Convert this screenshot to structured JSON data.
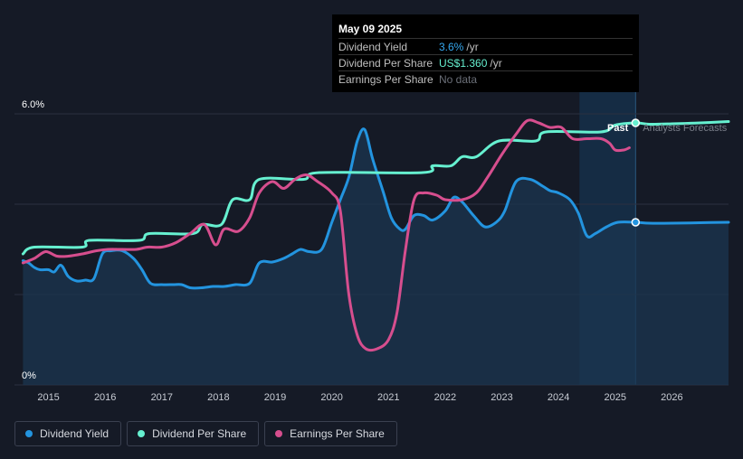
{
  "tooltip": {
    "date": "May 09 2025",
    "rows": [
      {
        "label": "Dividend Yield",
        "value": "3.6%",
        "unit": "/yr"
      },
      {
        "label": "Dividend Per Share",
        "value": "US$1.360",
        "unit": "/yr"
      },
      {
        "label": "Earnings Per Share",
        "value": "No data"
      }
    ]
  },
  "annotations": {
    "past": "Past",
    "forecast": "Analysts Forecasts"
  },
  "legend": [
    {
      "label": "Dividend Yield",
      "color": "#2394df"
    },
    {
      "label": "Dividend Per Share",
      "color": "#66f0d0"
    },
    {
      "label": "Earnings Per Share",
      "color": "#d64e8e"
    }
  ],
  "colors": {
    "background": "#151a26",
    "grid": "#2a3040",
    "area": "#1b3550",
    "forecast_band": "#152c44"
  },
  "chart_data": {
    "type": "line",
    "xlim": [
      2014.4,
      2027.0
    ],
    "ylim": [
      0,
      6.0
    ],
    "y_tick_labels": [
      {
        "value": 6.0,
        "label": "6.0%"
      },
      {
        "value": 0,
        "label": "0%"
      }
    ],
    "gridlines": [
      6.0,
      4.0,
      2.0,
      0
    ],
    "x_ticks": [
      2015,
      2016,
      2017,
      2018,
      2019,
      2020,
      2021,
      2022,
      2023,
      2024,
      2025,
      2026
    ],
    "past_boundary": 2025.36,
    "forecast_band_start": 2024.37,
    "series": [
      {
        "name": "Dividend Yield",
        "color": "#2394df",
        "area": true,
        "points": [
          [
            2014.55,
            2.75
          ],
          [
            2014.65,
            2.7
          ],
          [
            2014.75,
            2.6
          ],
          [
            2014.85,
            2.55
          ],
          [
            2015.0,
            2.55
          ],
          [
            2015.1,
            2.5
          ],
          [
            2015.22,
            2.65
          ],
          [
            2015.35,
            2.4
          ],
          [
            2015.5,
            2.3
          ],
          [
            2015.65,
            2.32
          ],
          [
            2015.8,
            2.35
          ],
          [
            2015.95,
            2.9
          ],
          [
            2016.1,
            2.97
          ],
          [
            2016.3,
            2.97
          ],
          [
            2016.5,
            2.8
          ],
          [
            2016.65,
            2.55
          ],
          [
            2016.8,
            2.25
          ],
          [
            2017.0,
            2.22
          ],
          [
            2017.2,
            2.22
          ],
          [
            2017.35,
            2.22
          ],
          [
            2017.5,
            2.15
          ],
          [
            2017.7,
            2.15
          ],
          [
            2017.9,
            2.18
          ],
          [
            2018.1,
            2.18
          ],
          [
            2018.3,
            2.22
          ],
          [
            2018.55,
            2.25
          ],
          [
            2018.72,
            2.7
          ],
          [
            2018.95,
            2.72
          ],
          [
            2019.15,
            2.8
          ],
          [
            2019.3,
            2.9
          ],
          [
            2019.45,
            3.0
          ],
          [
            2019.6,
            2.95
          ],
          [
            2019.82,
            3.0
          ],
          [
            2020.0,
            3.6
          ],
          [
            2020.15,
            4.1
          ],
          [
            2020.3,
            4.6
          ],
          [
            2020.45,
            5.4
          ],
          [
            2020.58,
            5.65
          ],
          [
            2020.72,
            5.0
          ],
          [
            2020.9,
            4.3
          ],
          [
            2021.05,
            3.7
          ],
          [
            2021.2,
            3.45
          ],
          [
            2021.3,
            3.45
          ],
          [
            2021.45,
            3.75
          ],
          [
            2021.62,
            3.75
          ],
          [
            2021.78,
            3.65
          ],
          [
            2022.0,
            3.85
          ],
          [
            2022.15,
            4.15
          ],
          [
            2022.3,
            4.05
          ],
          [
            2022.5,
            3.75
          ],
          [
            2022.7,
            3.5
          ],
          [
            2022.9,
            3.6
          ],
          [
            2023.05,
            3.85
          ],
          [
            2023.25,
            4.5
          ],
          [
            2023.5,
            4.55
          ],
          [
            2023.72,
            4.4
          ],
          [
            2023.85,
            4.3
          ],
          [
            2024.0,
            4.25
          ],
          [
            2024.2,
            4.1
          ],
          [
            2024.35,
            3.8
          ],
          [
            2024.5,
            3.3
          ],
          [
            2024.65,
            3.35
          ],
          [
            2024.85,
            3.5
          ],
          [
            2025.05,
            3.6
          ],
          [
            2025.36,
            3.6
          ],
          [
            2025.6,
            3.58
          ],
          [
            2026.0,
            3.58
          ],
          [
            2026.5,
            3.59
          ],
          [
            2027.0,
            3.6
          ]
        ]
      },
      {
        "name": "Dividend Per Share",
        "color": "#66f0d0",
        "area": false,
        "points": [
          [
            2014.55,
            2.9
          ],
          [
            2014.75,
            3.05
          ],
          [
            2015.6,
            3.05
          ],
          [
            2015.72,
            3.2
          ],
          [
            2016.6,
            3.2
          ],
          [
            2016.78,
            3.35
          ],
          [
            2017.55,
            3.35
          ],
          [
            2017.72,
            3.55
          ],
          [
            2018.05,
            3.55
          ],
          [
            2018.25,
            4.1
          ],
          [
            2018.55,
            4.1
          ],
          [
            2018.72,
            4.55
          ],
          [
            2019.5,
            4.55
          ],
          [
            2019.78,
            4.7
          ],
          [
            2021.6,
            4.7
          ],
          [
            2021.78,
            4.85
          ],
          [
            2022.1,
            4.85
          ],
          [
            2022.3,
            5.05
          ],
          [
            2022.55,
            5.05
          ],
          [
            2022.95,
            5.4
          ],
          [
            2023.6,
            5.4
          ],
          [
            2023.78,
            5.6
          ],
          [
            2024.75,
            5.6
          ],
          [
            2025.0,
            5.75
          ],
          [
            2025.36,
            5.8
          ],
          [
            2025.6,
            5.77
          ],
          [
            2026.0,
            5.78
          ],
          [
            2026.5,
            5.8
          ],
          [
            2027.0,
            5.83
          ]
        ]
      },
      {
        "name": "Earnings Per Share",
        "color": "#d64e8e",
        "area": false,
        "points": [
          [
            2014.55,
            2.7
          ],
          [
            2014.75,
            2.8
          ],
          [
            2014.95,
            2.95
          ],
          [
            2015.15,
            2.85
          ],
          [
            2015.35,
            2.85
          ],
          [
            2015.6,
            2.9
          ],
          [
            2015.85,
            2.97
          ],
          [
            2016.05,
            3.0
          ],
          [
            2016.3,
            3.0
          ],
          [
            2016.55,
            3.0
          ],
          [
            2016.75,
            3.05
          ],
          [
            2017.0,
            3.05
          ],
          [
            2017.25,
            3.15
          ],
          [
            2017.5,
            3.35
          ],
          [
            2017.75,
            3.55
          ],
          [
            2017.95,
            3.1
          ],
          [
            2018.1,
            3.45
          ],
          [
            2018.35,
            3.4
          ],
          [
            2018.55,
            3.7
          ],
          [
            2018.72,
            4.25
          ],
          [
            2018.95,
            4.5
          ],
          [
            2019.15,
            4.35
          ],
          [
            2019.35,
            4.55
          ],
          [
            2019.55,
            4.65
          ],
          [
            2019.75,
            4.5
          ],
          [
            2020.0,
            4.25
          ],
          [
            2020.15,
            3.85
          ],
          [
            2020.3,
            2.0
          ],
          [
            2020.45,
            1.1
          ],
          [
            2020.6,
            0.8
          ],
          [
            2020.8,
            0.8
          ],
          [
            2021.0,
            1.0
          ],
          [
            2021.15,
            1.6
          ],
          [
            2021.3,
            3.0
          ],
          [
            2021.45,
            4.1
          ],
          [
            2021.62,
            4.25
          ],
          [
            2021.85,
            4.2
          ],
          [
            2022.0,
            4.1
          ],
          [
            2022.3,
            4.1
          ],
          [
            2022.55,
            4.25
          ],
          [
            2022.75,
            4.6
          ],
          [
            2023.0,
            5.1
          ],
          [
            2023.25,
            5.55
          ],
          [
            2023.45,
            5.85
          ],
          [
            2023.65,
            5.8
          ],
          [
            2023.85,
            5.7
          ],
          [
            2024.05,
            5.7
          ],
          [
            2024.25,
            5.45
          ],
          [
            2024.5,
            5.45
          ],
          [
            2024.75,
            5.45
          ],
          [
            2024.9,
            5.35
          ],
          [
            2025.0,
            5.2
          ],
          [
            2025.15,
            5.2
          ],
          [
            2025.25,
            5.25
          ]
        ]
      }
    ],
    "markers": [
      {
        "series": "Dividend Yield",
        "x": 2025.36,
        "y": 3.6
      },
      {
        "series": "Dividend Per Share",
        "x": 2025.36,
        "y": 5.8
      }
    ]
  }
}
